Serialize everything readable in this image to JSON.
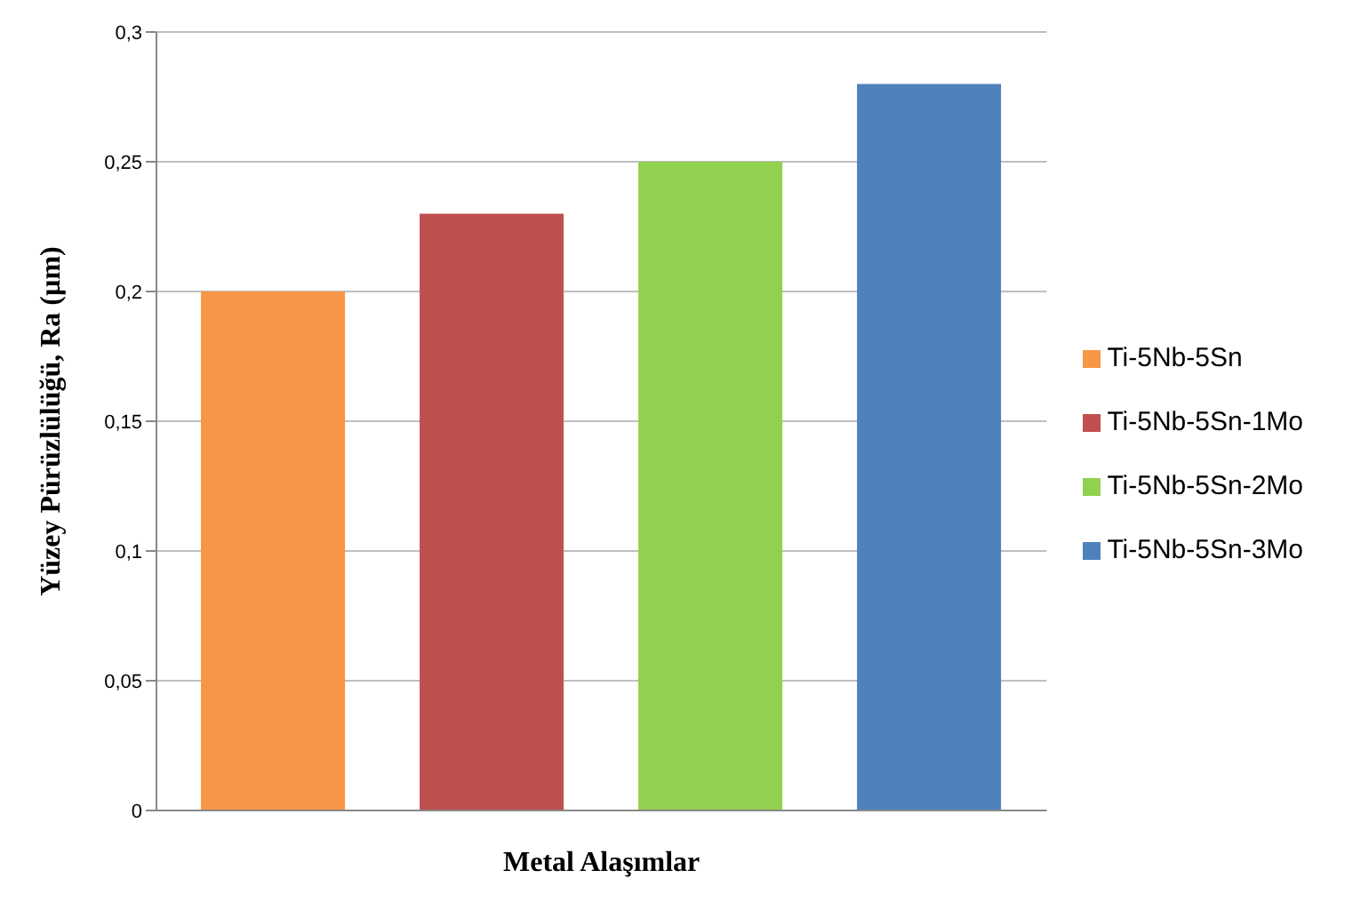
{
  "chart_data": {
    "type": "bar",
    "xlabel": "Metal Alaşımlar",
    "ylabel": "Yüzey Pürüzlülüğü, Ra (µm)",
    "categories": [
      null
    ],
    "series": [
      {
        "name": "Ti-5Nb-5Sn",
        "color": "#f79646",
        "values": [
          0.2
        ]
      },
      {
        "name": "Ti-5Nb-5Sn-1Mo",
        "color": "#c0504d",
        "values": [
          0.23
        ]
      },
      {
        "name": "Ti-5Nb-5Sn-2Mo",
        "color": "#92d050",
        "values": [
          0.25
        ]
      },
      {
        "name": "Ti-5Nb-5Sn-3Mo",
        "color": "#4f81bd",
        "values": [
          0.28
        ]
      }
    ],
    "ylim": [
      0,
      0.3
    ],
    "yticks": [
      {
        "value": 0,
        "label": "0"
      },
      {
        "value": 0.05,
        "label": "0,05"
      },
      {
        "value": 0.1,
        "label": "0,1"
      },
      {
        "value": 0.15,
        "label": "0,15"
      },
      {
        "value": 0.2,
        "label": "0,2"
      },
      {
        "value": 0.25,
        "label": "0,25"
      },
      {
        "value": 0.3,
        "label": "0,3"
      }
    ],
    "grid": "y",
    "legend": "right",
    "tick_labels": "y"
  }
}
